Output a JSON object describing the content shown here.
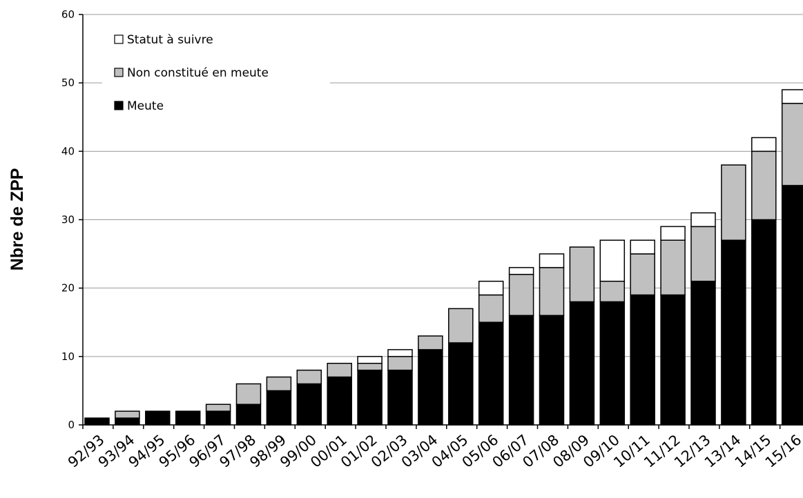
{
  "chart_data": {
    "type": "bar",
    "stacked": true,
    "ylabel": "Nbre de ZPP",
    "xlabel": "",
    "ylim": [
      0,
      60
    ],
    "yticks": [
      0,
      10,
      20,
      30,
      40,
      50,
      60
    ],
    "grid": true,
    "legend_position": "top-left",
    "categories": [
      "92/93",
      "93/94",
      "94/95",
      "95/96",
      "96/97",
      "97/98",
      "98/99",
      "99/00",
      "00/01",
      "01/02",
      "02/03",
      "03/04",
      "04/05",
      "05/06",
      "06/07",
      "07/08",
      "08/09",
      "09/10",
      "10/11",
      "11/12",
      "12/13",
      "13/14",
      "14/15",
      "15/16"
    ],
    "series": [
      {
        "name": "Meute",
        "color": "#000000",
        "values": [
          1,
          1,
          2,
          2,
          2,
          3,
          5,
          6,
          7,
          8,
          8,
          11,
          12,
          15,
          16,
          16,
          18,
          18,
          19,
          19,
          21,
          27,
          30,
          35
        ]
      },
      {
        "name": "Non constitué en meute",
        "color": "#c0c0c0",
        "values": [
          0,
          1,
          0,
          0,
          1,
          3,
          2,
          2,
          2,
          1,
          2,
          2,
          5,
          4,
          6,
          7,
          8,
          3,
          6,
          8,
          8,
          11,
          10,
          12
        ]
      },
      {
        "name": "Statut à suivre",
        "color": "#ffffff",
        "values": [
          0,
          0,
          0,
          0,
          0,
          0,
          0,
          0,
          0,
          1,
          1,
          0,
          0,
          2,
          1,
          2,
          0,
          6,
          2,
          2,
          2,
          0,
          2,
          2
        ]
      }
    ]
  }
}
